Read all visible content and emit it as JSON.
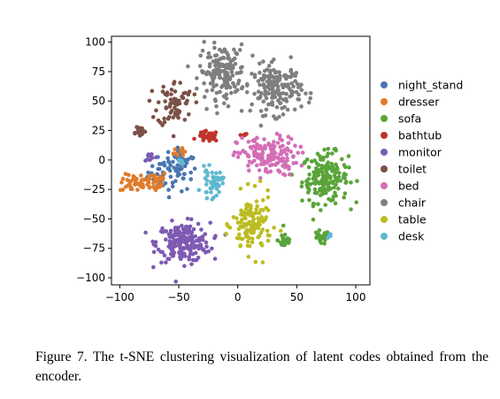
{
  "chart_data": {
    "type": "scatter",
    "title": "",
    "xlabel": "",
    "ylabel": "",
    "xlim": [
      -107,
      112
    ],
    "ylim": [
      -106,
      105
    ],
    "xticks": [
      -100,
      -50,
      0,
      50,
      100
    ],
    "yticks": [
      100,
      75,
      50,
      25,
      0,
      -25,
      -50,
      -75,
      -100
    ],
    "xtick_labels": [
      "−100",
      "−50",
      "0",
      "50",
      "100"
    ],
    "ytick_labels": [
      "100",
      "75",
      "50",
      "25",
      "0",
      "−25",
      "−50",
      "−75",
      "−100"
    ],
    "grid": false,
    "legend_position": "right",
    "series": [
      {
        "name": "night_stand",
        "color": "#4a76b0",
        "clusters": [
          {
            "cx": -55,
            "cy": -10,
            "sx": 14,
            "sy": 11,
            "n": 70
          },
          {
            "cx": -48,
            "cy": 3,
            "sx": 6,
            "sy": 4,
            "n": 12
          }
        ]
      },
      {
        "name": "dresser",
        "color": "#e07b2a",
        "clusters": [
          {
            "cx": -88,
            "cy": -20,
            "sx": 8,
            "sy": 5,
            "n": 40
          },
          {
            "cx": -70,
            "cy": -18,
            "sx": 7,
            "sy": 6,
            "n": 35
          },
          {
            "cx": -48,
            "cy": 8,
            "sx": 4,
            "sy": 4,
            "n": 10
          }
        ]
      },
      {
        "name": "sofa",
        "color": "#5aa43a",
        "clusters": [
          {
            "cx": 74,
            "cy": -15,
            "sx": 13,
            "sy": 14,
            "n": 180
          },
          {
            "cx": 40,
            "cy": -68,
            "sx": 4,
            "sy": 5,
            "n": 25
          },
          {
            "cx": 70,
            "cy": -66,
            "sx": 5,
            "sy": 4,
            "n": 25
          }
        ]
      },
      {
        "name": "bathtub",
        "color": "#c0342b",
        "clusters": [
          {
            "cx": -25,
            "cy": 20,
            "sx": 6,
            "sy": 3,
            "n": 30
          },
          {
            "cx": 4,
            "cy": 20,
            "sx": 3,
            "sy": 2,
            "n": 6
          }
        ]
      },
      {
        "name": "monitor",
        "color": "#7e5ab3",
        "clusters": [
          {
            "cx": -46,
            "cy": -70,
            "sx": 15,
            "sy": 11,
            "n": 210
          },
          {
            "cx": -74,
            "cy": 3,
            "sx": 4,
            "sy": 3,
            "n": 8
          }
        ]
      },
      {
        "name": "toilet",
        "color": "#7b5046",
        "clusters": [
          {
            "cx": -53,
            "cy": 48,
            "sx": 10,
            "sy": 13,
            "n": 70
          },
          {
            "cx": -84,
            "cy": 25,
            "sx": 4,
            "sy": 3,
            "n": 18
          }
        ]
      },
      {
        "name": "bed",
        "color": "#d36eb7",
        "clusters": [
          {
            "cx": 25,
            "cy": 3,
            "sx": 17,
            "sy": 11,
            "n": 160
          }
        ]
      },
      {
        "name": "chair",
        "color": "#7f7f7f",
        "clusters": [
          {
            "cx": -13,
            "cy": 75,
            "sx": 13,
            "sy": 15,
            "n": 160
          },
          {
            "cx": 33,
            "cy": 60,
            "sx": 14,
            "sy": 14,
            "n": 170
          }
        ]
      },
      {
        "name": "table",
        "color": "#bcbd22",
        "clusters": [
          {
            "cx": 12,
            "cy": -55,
            "sx": 11,
            "sy": 17,
            "n": 130
          }
        ]
      },
      {
        "name": "desk",
        "color": "#5fb9d0",
        "clusters": [
          {
            "cx": -22,
            "cy": -20,
            "sx": 6,
            "sy": 8,
            "n": 45
          },
          {
            "cx": -47,
            "cy": 0,
            "sx": 3,
            "sy": 3,
            "n": 6
          },
          {
            "cx": 78,
            "cy": -65,
            "sx": 2,
            "sy": 2,
            "n": 4
          }
        ]
      }
    ]
  },
  "caption": "Figure 7. The t-SNE clustering visualization of latent codes obtained from the encoder."
}
